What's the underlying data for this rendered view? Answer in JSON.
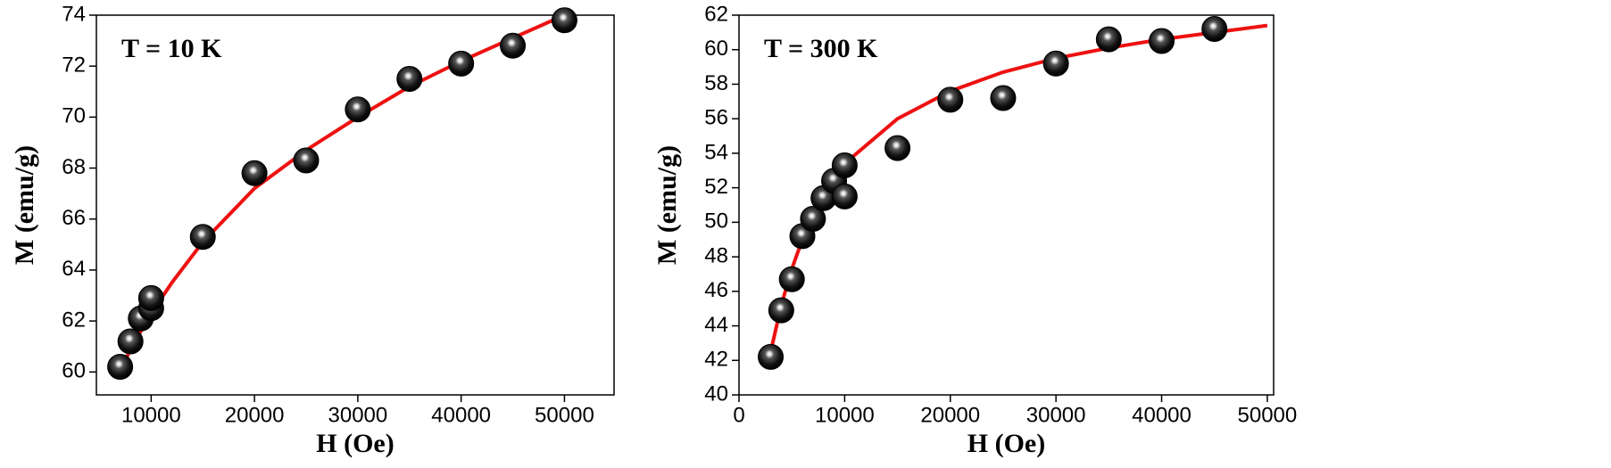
{
  "chart_data": [
    {
      "type": "scatter",
      "annotation": "T = 10 K",
      "xlabel": "H (Oe)",
      "ylabel": "M (emu/g)",
      "xlim": [
        4700,
        54800
      ],
      "ylim": [
        59.1,
        74
      ],
      "xticks": [
        10000,
        20000,
        30000,
        40000,
        50000
      ],
      "yticks": [
        60,
        62,
        64,
        66,
        68,
        70,
        72,
        74
      ],
      "points": {
        "color": "#000000",
        "x": [
          7000,
          8000,
          9000,
          10000,
          10000,
          15000,
          20000,
          25000,
          30000,
          35000,
          40000,
          45000,
          50000
        ],
        "values": [
          60.2,
          61.2,
          62.1,
          62.5,
          62.9,
          65.3,
          67.8,
          68.3,
          70.3,
          71.5,
          72.1,
          72.8,
          73.8
        ]
      },
      "fit": {
        "color": "#ee1111",
        "x": [
          7000,
          8000,
          9000,
          10000,
          12000,
          15000,
          20000,
          25000,
          30000,
          35000,
          40000,
          45000,
          50000
        ],
        "values": [
          60.0,
          60.9,
          61.6,
          62.3,
          63.5,
          65.1,
          67.2,
          68.7,
          70.0,
          71.2,
          72.2,
          73.1,
          74.0
        ]
      }
    },
    {
      "type": "scatter",
      "annotation": "T = 300 K",
      "xlabel": "H (Oe)",
      "ylabel": "M (emu/g)",
      "xlim": [
        0,
        50600
      ],
      "ylim": [
        40,
        62
      ],
      "xticks": [
        0,
        10000,
        20000,
        30000,
        40000,
        50000
      ],
      "yticks": [
        40,
        42,
        44,
        46,
        48,
        50,
        52,
        54,
        56,
        58,
        60,
        62
      ],
      "points": {
        "color": "#000000",
        "x": [
          3000,
          4000,
          5000,
          6000,
          7000,
          8000,
          9000,
          10000,
          10000,
          15000,
          20000,
          25000,
          30000,
          35000,
          40000,
          45000
        ],
        "values": [
          42.2,
          44.9,
          46.7,
          49.2,
          50.2,
          51.4,
          52.4,
          53.3,
          51.5,
          54.3,
          57.1,
          57.2,
          59.2,
          60.6,
          60.5,
          61.2
        ]
      },
      "fit": {
        "color": "#ee1111",
        "x": [
          3000,
          4000,
          5000,
          6000,
          8000,
          10000,
          15000,
          20000,
          25000,
          30000,
          35000,
          40000,
          45000,
          50000
        ],
        "values": [
          42.5,
          45.2,
          47.3,
          49.0,
          51.6,
          53.4,
          56.0,
          57.6,
          58.7,
          59.5,
          60.1,
          60.6,
          61.0,
          61.4
        ]
      }
    }
  ]
}
